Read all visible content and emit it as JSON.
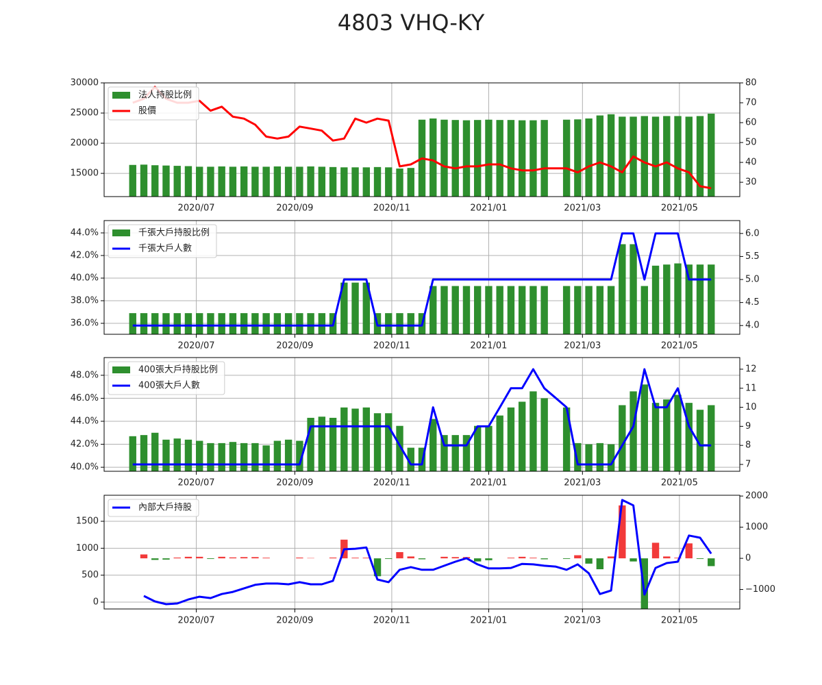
{
  "title": "4803 VHQ-KY",
  "chart_data": [
    {
      "type": "bar_line",
      "grid": true,
      "legend": "upper left",
      "x": [
        "2020-05-22",
        "2020-05-29",
        "2020-06-05",
        "2020-06-12",
        "2020-06-19",
        "2020-06-26",
        "2020-07-03",
        "2020-07-10",
        "2020-07-17",
        "2020-07-24",
        "2020-07-31",
        "2020-08-07",
        "2020-08-14",
        "2020-08-21",
        "2020-08-28",
        "2020-09-04",
        "2020-09-11",
        "2020-09-18",
        "2020-09-25",
        "2020-10-02",
        "2020-10-09",
        "2020-10-16",
        "2020-10-23",
        "2020-10-30",
        "2020-11-06",
        "2020-11-13",
        "2020-11-20",
        "2020-11-27",
        "2020-12-04",
        "2020-12-11",
        "2020-12-18",
        "2020-12-25",
        "2021-01-01",
        "2021-01-08",
        "2021-01-15",
        "2021-01-22",
        "2021-01-29",
        "2021-02-05",
        "2021-02-12",
        "2021-02-19",
        "2021-02-26",
        "2021-03-05",
        "2021-03-12",
        "2021-03-19",
        "2021-03-26",
        "2021-04-02",
        "2021-04-09",
        "2021-04-16",
        "2021-04-23",
        "2021-04-30",
        "2021-05-07",
        "2021-05-14",
        "2021-05-21"
      ],
      "xlim": [
        "2020-05-04",
        "2021-06-08"
      ],
      "xticks": [
        {
          "value": "2020-07-01",
          "label": "2020/07"
        },
        {
          "value": "2020-09-01",
          "label": "2020/09"
        },
        {
          "value": "2020-11-01",
          "label": "2020/11"
        },
        {
          "value": "2021-01-01",
          "label": "2021/01"
        },
        {
          "value": "2021-03-01",
          "label": "2021/03"
        },
        {
          "value": "2021-05-01",
          "label": "2021/05"
        }
      ],
      "ylim": [
        11150,
        30000
      ],
      "yticks": [
        15000,
        20000,
        25000,
        30000
      ],
      "y2lim": [
        22.8,
        80
      ],
      "y2ticks": [
        30,
        40,
        50,
        60,
        70,
        80
      ],
      "series": [
        {
          "name": "法人持股比例",
          "kind": "bar",
          "color": "#2e8f2e",
          "values": [
            16400,
            16450,
            16350,
            16300,
            16250,
            16200,
            16100,
            16100,
            16150,
            16100,
            16150,
            16100,
            16100,
            16150,
            16100,
            16100,
            16150,
            16100,
            16050,
            16000,
            16000,
            16000,
            16050,
            16000,
            15800,
            15900,
            23900,
            24100,
            23900,
            23850,
            23800,
            23850,
            23900,
            23850,
            23850,
            23800,
            23800,
            23850,
            null,
            23900,
            23950,
            24100,
            24600,
            24800,
            24400,
            24400,
            24500,
            24400,
            24500,
            24500,
            24400,
            24500,
            24900
          ]
        },
        {
          "name": "股價",
          "kind": "line",
          "color": "#ff0000",
          "axis": "y2",
          "values": [
            70,
            72,
            78,
            72,
            70,
            70,
            71,
            66,
            68,
            63,
            62,
            59,
            53,
            52,
            53,
            58,
            57,
            56,
            51,
            52,
            62,
            60,
            62,
            61,
            38,
            39,
            42,
            41,
            38,
            37,
            38,
            38,
            39,
            39,
            37,
            36,
            36,
            37,
            37,
            37,
            35,
            38,
            40,
            38,
            35,
            43,
            40,
            38,
            40,
            37,
            35,
            28,
            27
          ]
        }
      ]
    },
    {
      "type": "bar_line",
      "grid": true,
      "legend": "upper left",
      "x": [
        "2020-05-22",
        "2020-05-29",
        "2020-06-05",
        "2020-06-12",
        "2020-06-19",
        "2020-06-26",
        "2020-07-03",
        "2020-07-10",
        "2020-07-17",
        "2020-07-24",
        "2020-07-31",
        "2020-08-07",
        "2020-08-14",
        "2020-08-21",
        "2020-08-28",
        "2020-09-04",
        "2020-09-11",
        "2020-09-18",
        "2020-09-25",
        "2020-10-02",
        "2020-10-09",
        "2020-10-16",
        "2020-10-23",
        "2020-10-30",
        "2020-11-06",
        "2020-11-13",
        "2020-11-20",
        "2020-11-27",
        "2020-12-04",
        "2020-12-11",
        "2020-12-18",
        "2020-12-25",
        "2021-01-01",
        "2021-01-08",
        "2021-01-15",
        "2021-01-22",
        "2021-01-29",
        "2021-02-05",
        "2021-02-12",
        "2021-02-19",
        "2021-02-26",
        "2021-03-05",
        "2021-03-12",
        "2021-03-19",
        "2021-03-26",
        "2021-04-02",
        "2021-04-09",
        "2021-04-16",
        "2021-04-23",
        "2021-04-30",
        "2021-05-07",
        "2021-05-14",
        "2021-05-21"
      ],
      "xlim": [
        "2020-05-04",
        "2021-06-08"
      ],
      "xticks": [
        {
          "value": "2020-07-01",
          "label": "2020/07"
        },
        {
          "value": "2020-09-01",
          "label": "2020/09"
        },
        {
          "value": "2020-11-01",
          "label": "2020/11"
        },
        {
          "value": "2021-01-01",
          "label": "2021/01"
        },
        {
          "value": "2021-03-01",
          "label": "2021/03"
        },
        {
          "value": "2021-05-01",
          "label": "2021/05"
        }
      ],
      "ylim": [
        35.03,
        45.09
      ],
      "yticks": [
        {
          "value": 36,
          "label": "36.0%"
        },
        {
          "value": 38,
          "label": "38.0%"
        },
        {
          "value": 40,
          "label": "40.0%"
        },
        {
          "value": 42,
          "label": "42.0%"
        },
        {
          "value": 44,
          "label": "44.0%"
        }
      ],
      "y2lim": [
        3.81,
        6.28
      ],
      "y2ticks": [
        {
          "value": 4,
          "label": "4.0"
        },
        {
          "value": 4.5,
          "label": "4.5"
        },
        {
          "value": 5,
          "label": "5.0"
        },
        {
          "value": 5.5,
          "label": "5.5"
        },
        {
          "value": 6,
          "label": "6.0"
        }
      ],
      "series": [
        {
          "name": "千張大戶持股比例",
          "kind": "bar",
          "color": "#2e8f2e",
          "values": [
            36.9,
            36.9,
            36.9,
            36.9,
            36.9,
            36.9,
            36.9,
            36.9,
            36.9,
            36.9,
            36.9,
            36.9,
            36.9,
            36.9,
            36.9,
            36.9,
            36.9,
            36.9,
            36.9,
            39.6,
            39.6,
            39.6,
            36.9,
            36.9,
            36.9,
            36.9,
            36.9,
            39.3,
            39.3,
            39.3,
            39.3,
            39.3,
            39.3,
            39.3,
            39.3,
            39.3,
            39.3,
            39.3,
            null,
            39.3,
            39.3,
            39.3,
            39.3,
            39.3,
            43.0,
            43.0,
            39.3,
            41.1,
            41.2,
            41.3,
            41.2,
            41.2,
            41.2
          ]
        },
        {
          "name": "千張大戶人數",
          "kind": "line",
          "color": "#0000ff",
          "axis": "y2",
          "values": [
            4,
            4,
            4,
            4,
            4,
            4,
            4,
            4,
            4,
            4,
            4,
            4,
            4,
            4,
            4,
            4,
            4,
            4,
            4,
            5,
            5,
            5,
            4,
            4,
            4,
            4,
            4,
            5,
            5,
            5,
            5,
            5,
            5,
            5,
            5,
            5,
            5,
            5,
            5,
            5,
            5,
            5,
            5,
            5,
            6,
            6,
            5,
            6,
            6,
            6,
            5,
            5,
            5
          ]
        }
      ]
    },
    {
      "type": "bar_line",
      "grid": true,
      "legend": "upper left",
      "x": [
        "2020-05-22",
        "2020-05-29",
        "2020-06-05",
        "2020-06-12",
        "2020-06-19",
        "2020-06-26",
        "2020-07-03",
        "2020-07-10",
        "2020-07-17",
        "2020-07-24",
        "2020-07-31",
        "2020-08-07",
        "2020-08-14",
        "2020-08-21",
        "2020-08-28",
        "2020-09-04",
        "2020-09-11",
        "2020-09-18",
        "2020-09-25",
        "2020-10-02",
        "2020-10-09",
        "2020-10-16",
        "2020-10-23",
        "2020-10-30",
        "2020-11-06",
        "2020-11-13",
        "2020-11-20",
        "2020-11-27",
        "2020-12-04",
        "2020-12-11",
        "2020-12-18",
        "2020-12-25",
        "2021-01-01",
        "2021-01-08",
        "2021-01-15",
        "2021-01-22",
        "2021-01-29",
        "2021-02-05",
        "2021-02-12",
        "2021-02-19",
        "2021-02-26",
        "2021-03-05",
        "2021-03-12",
        "2021-03-19",
        "2021-03-26",
        "2021-04-02",
        "2021-04-09",
        "2021-04-16",
        "2021-04-23",
        "2021-04-30",
        "2021-05-07",
        "2021-05-14",
        "2021-05-21"
      ],
      "xlim": [
        "2020-05-04",
        "2021-06-08"
      ],
      "xticks": [
        {
          "value": "2020-07-01",
          "label": "2020/07"
        },
        {
          "value": "2020-09-01",
          "label": "2020/09"
        },
        {
          "value": "2020-11-01",
          "label": "2020/11"
        },
        {
          "value": "2021-01-01",
          "label": "2021/01"
        },
        {
          "value": "2021-03-01",
          "label": "2021/03"
        },
        {
          "value": "2021-05-01",
          "label": "2021/05"
        }
      ],
      "ylim": [
        39.65,
        49.54
      ],
      "yticks": [
        {
          "value": 40,
          "label": "40.0%"
        },
        {
          "value": 42,
          "label": "42.0%"
        },
        {
          "value": 44,
          "label": "44.0%"
        },
        {
          "value": 46,
          "label": "46.0%"
        },
        {
          "value": 48,
          "label": "48.0%"
        }
      ],
      "y2lim": [
        6.64,
        12.61
      ],
      "y2ticks": [
        7,
        8,
        9,
        10,
        11,
        12
      ],
      "series": [
        {
          "name": "400張大戶持股比例",
          "kind": "bar",
          "color": "#2e8f2e",
          "values": [
            42.7,
            42.8,
            43.0,
            42.4,
            42.5,
            42.4,
            42.3,
            42.1,
            42.1,
            42.2,
            42.1,
            42.1,
            41.9,
            42.3,
            42.4,
            42.3,
            44.3,
            44.4,
            44.3,
            45.2,
            45.1,
            45.2,
            44.7,
            44.7,
            43.6,
            41.7,
            41.7,
            44.2,
            42.8,
            42.8,
            42.8,
            43.6,
            43.6,
            44.5,
            45.2,
            45.7,
            46.6,
            46.0,
            null,
            45.2,
            42.1,
            42.0,
            42.1,
            42.0,
            45.4,
            46.6,
            47.2,
            45.6,
            45.9,
            46.3,
            45.6,
            45.0,
            45.4
          ]
        },
        {
          "name": "400張大戶人數",
          "kind": "line",
          "color": "#0000ff",
          "axis": "y2",
          "values": [
            7,
            7,
            7,
            7,
            7,
            7,
            7,
            7,
            7,
            7,
            7,
            7,
            7,
            7,
            7,
            7,
            9,
            9,
            9,
            9,
            9,
            9,
            9,
            9,
            8,
            7,
            7,
            10,
            8,
            8,
            8,
            9,
            9,
            10,
            11,
            11,
            12,
            11,
            10.5,
            10,
            7,
            7,
            7,
            7,
            8,
            9,
            12,
            10,
            10,
            11,
            9,
            8,
            8
          ]
        }
      ]
    },
    {
      "type": "bar_line",
      "grid": true,
      "legend": "upper left",
      "x": [
        "2020-05-22",
        "2020-05-29",
        "2020-06-05",
        "2020-06-12",
        "2020-06-19",
        "2020-06-26",
        "2020-07-03",
        "2020-07-10",
        "2020-07-17",
        "2020-07-24",
        "2020-07-31",
        "2020-08-07",
        "2020-08-14",
        "2020-08-21",
        "2020-08-28",
        "2020-09-04",
        "2020-09-11",
        "2020-09-18",
        "2020-09-25",
        "2020-10-02",
        "2020-10-09",
        "2020-10-16",
        "2020-10-23",
        "2020-10-30",
        "2020-11-06",
        "2020-11-13",
        "2020-11-20",
        "2020-11-27",
        "2020-12-04",
        "2020-12-11",
        "2020-12-18",
        "2020-12-25",
        "2021-01-01",
        "2021-01-08",
        "2021-01-15",
        "2021-01-22",
        "2021-01-29",
        "2021-02-05",
        "2021-02-12",
        "2021-02-19",
        "2021-02-26",
        "2021-03-05",
        "2021-03-12",
        "2021-03-19",
        "2021-03-26",
        "2021-04-02",
        "2021-04-09",
        "2021-04-16",
        "2021-04-23",
        "2021-04-30",
        "2021-05-07",
        "2021-05-14",
        "2021-05-21"
      ],
      "xlim": [
        "2020-05-04",
        "2021-06-08"
      ],
      "xticks": [
        {
          "value": "2020-07-01",
          "label": "2020/07"
        },
        {
          "value": "2020-09-01",
          "label": "2020/09"
        },
        {
          "value": "2020-11-01",
          "label": "2020/11"
        },
        {
          "value": "2021-01-01",
          "label": "2021/01"
        },
        {
          "value": "2021-03-01",
          "label": "2021/03"
        },
        {
          "value": "2021-05-01",
          "label": "2021/05"
        }
      ],
      "ylim": [
        -127,
        1983
      ],
      "yticks": [
        0,
        500,
        1000,
        1500
      ],
      "y2lim": [
        -1625,
        2025
      ],
      "y2ticks": [
        {
          "value": -1000,
          "label": "−1000"
        },
        0,
        1000,
        2000
      ],
      "series": [
        {
          "kind": "bar",
          "axis": "y2",
          "up_color": "#f23a3a",
          "down_color": "#2e8f2e",
          "values": [
            null,
            125,
            -50,
            -40,
            25,
            50,
            50,
            -20,
            50,
            30,
            40,
            40,
            20,
            null,
            null,
            25,
            10,
            0,
            25,
            600,
            20,
            20,
            -575,
            -20,
            200,
            60,
            -30,
            0,
            50,
            40,
            40,
            -100,
            -60,
            0,
            20,
            50,
            20,
            -30,
            null,
            -20,
            100,
            -170,
            -350,
            60,
            1700,
            -100,
            -1650,
            500,
            60,
            20,
            480,
            -20,
            -250
          ]
        },
        {
          "name": "內部大戶持股",
          "kind": "line",
          "color": "#0000ff",
          "values": [
            null,
            115,
            13,
            -38,
            -25,
            50,
            100,
            75,
            150,
            190,
            255,
            320,
            345,
            345,
            330,
            370,
            330,
            330,
            395,
            980,
            990,
            1015,
            420,
            370,
            600,
            650,
            600,
            600,
            675,
            750,
            815,
            700,
            625,
            625,
            635,
            710,
            700,
            675,
            660,
            600,
            700,
            535,
            150,
            215,
            1895,
            1795,
            140,
            635,
            725,
            750,
            1235,
            1195,
            900
          ]
        }
      ]
    }
  ]
}
